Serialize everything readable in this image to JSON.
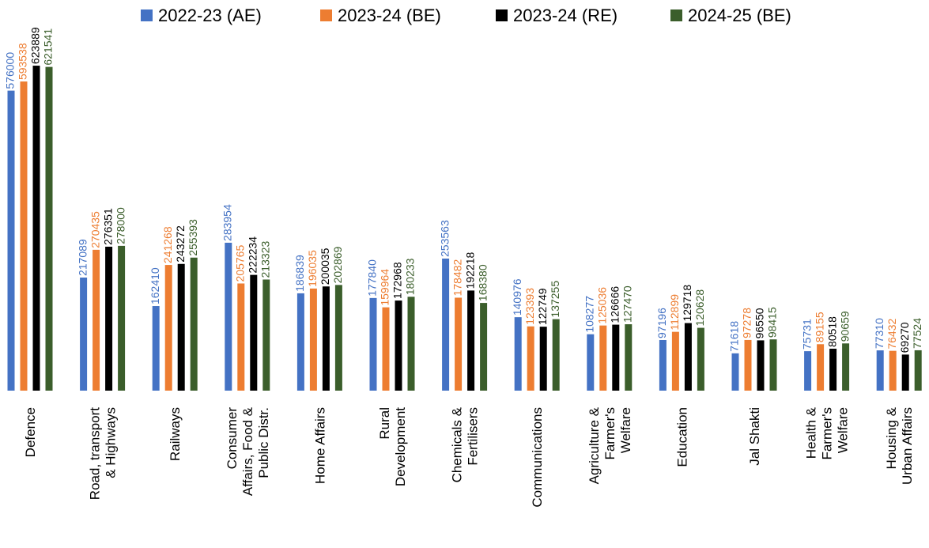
{
  "chart_data": {
    "type": "bar",
    "categories": [
      "Defence",
      "Road, transport\n& Highways",
      "Railways",
      "Consumer\nAffairs, Food &\nPublic Distr.",
      "Home Affairs",
      "Rural\nDevelopment",
      "Chemicals &\nFertilisers",
      "Communications",
      "Agriculture &\nFarmer's\nWelfare",
      "Education",
      "Jal Shakti",
      "Health &\nFarmer's\nWelfare",
      "Housing &\nUrban Affairs"
    ],
    "series": [
      {
        "name": "2022-23 (AE)",
        "color": "#4472c4",
        "values": [
          576000,
          217089,
          162410,
          283954,
          186839,
          177840,
          253563,
          140976,
          108277,
          97196,
          71618,
          75731,
          77310
        ]
      },
      {
        "name": "2023-24 (BE)",
        "color": "#ed7d31",
        "values": [
          593538,
          270435,
          241268,
          205765,
          196035,
          159964,
          178482,
          123393,
          125036,
          112899,
          97278,
          89155,
          76432
        ]
      },
      {
        "name": "2023-24 (RE)",
        "color": "#000000",
        "values": [
          623889,
          276351,
          243272,
          222234,
          200035,
          172968,
          192218,
          122749,
          126666,
          129718,
          96550,
          80518,
          69270
        ]
      },
      {
        "name": "2024-25 (BE)",
        "color": "#3b5e2b",
        "values": [
          621541,
          278000,
          255393,
          213323,
          202869,
          180233,
          168380,
          137255,
          127470,
          120628,
          98415,
          90659,
          77524
        ]
      }
    ],
    "ylim": [
      0,
      750000
    ],
    "legend": "top"
  }
}
